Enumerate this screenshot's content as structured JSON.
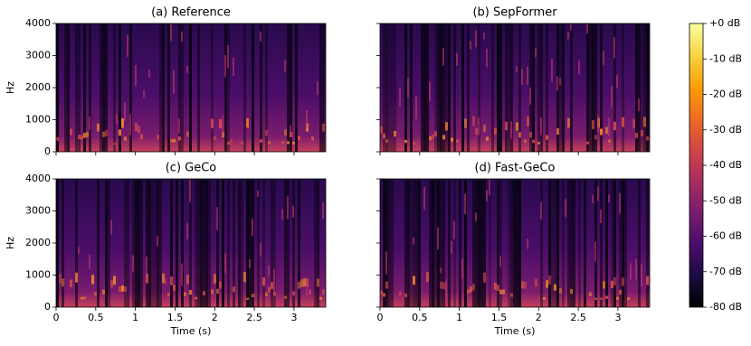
{
  "chart_data": [
    {
      "type": "spectrogram",
      "title": "(a) Reference",
      "ylabel": "Hz",
      "ylim": [
        0,
        4000
      ],
      "yticks": [
        0,
        1000,
        2000,
        3000,
        4000
      ],
      "xlim": [
        0,
        3.4
      ]
    },
    {
      "type": "spectrogram",
      "title": "(b) SepFormer",
      "ylim": [
        0,
        4000
      ],
      "xlim": [
        0,
        3.4
      ]
    },
    {
      "type": "spectrogram",
      "title": "(c) GeCo",
      "ylabel": "Hz",
      "xlabel": "Time (s)",
      "ylim": [
        0,
        4000
      ],
      "yticks": [
        0,
        1000,
        2000,
        3000,
        4000
      ],
      "xlim": [
        0,
        3.4
      ],
      "xticks": [
        0,
        0.5,
        1,
        1.5,
        2,
        2.5,
        3
      ]
    },
    {
      "type": "spectrogram",
      "title": "(d) Fast-GeCo",
      "xlabel": "Time (s)",
      "ylim": [
        0,
        4000
      ],
      "xlim": [
        0,
        3.4
      ],
      "xticks": [
        0,
        0.5,
        1,
        1.5,
        2,
        2.5,
        3
      ]
    },
    {
      "type": "colorbar",
      "clim": [
        -80,
        0
      ],
      "colormap": "inferno",
      "ticks": [
        {
          "value": 0,
          "label": "+0 dB"
        },
        {
          "value": -10,
          "label": "-10 dB"
        },
        {
          "value": -20,
          "label": "-20 dB"
        },
        {
          "value": -30,
          "label": "-30 dB"
        },
        {
          "value": -40,
          "label": "-40 dB"
        },
        {
          "value": -50,
          "label": "-50 dB"
        },
        {
          "value": -60,
          "label": "-60 dB"
        },
        {
          "value": -70,
          "label": "-70 dB"
        },
        {
          "value": -80,
          "label": "-80 dB"
        }
      ]
    }
  ]
}
